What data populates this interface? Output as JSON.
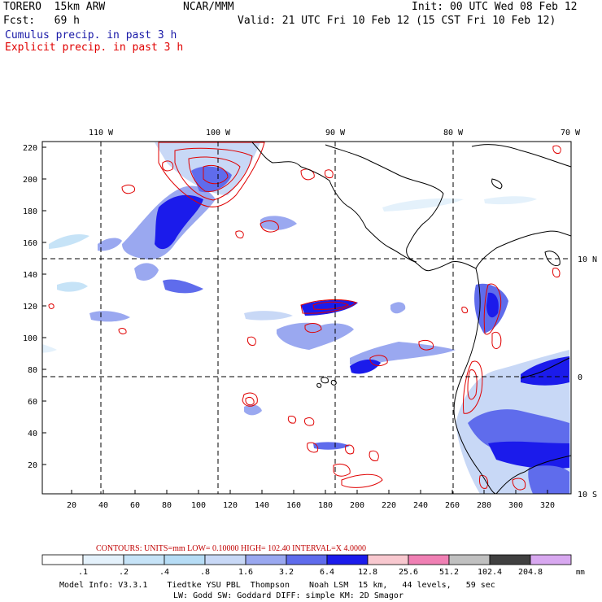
{
  "header": {
    "model": "TORERO  15km ARW",
    "org": "NCAR/MMM",
    "init": "Init: 00 UTC Wed 08 Feb 12",
    "fcst": "Fcst:   69 h",
    "valid": "Valid: 21 UTC Fri 10 Feb 12 (15 CST Fri 10 Feb 12)",
    "legend_cumulus": "Cumulus precip. in past 3 h",
    "legend_explicit": "Explicit precip. in past 3 h",
    "legend_cumulus_color": "#1a1aa8",
    "legend_explicit_color": "#e00000"
  },
  "map": {
    "top_lon_labels": [
      "110 W",
      "100 W",
      "90 W",
      "80 W",
      "70 W"
    ],
    "right_lat_labels": [
      "10 N",
      "0",
      "10 S"
    ],
    "y_ticks": [
      "220",
      "200",
      "180",
      "160",
      "140",
      "120",
      "100",
      "80",
      "60",
      "40",
      "20"
    ],
    "x_ticks": [
      "20",
      "40",
      "60",
      "80",
      "100",
      "120",
      "140",
      "160",
      "180",
      "200",
      "220",
      "240",
      "260",
      "280",
      "300",
      "320"
    ]
  },
  "contour_info": {
    "label": "CONTOURS:  UNITS=mm  LOW= 0.10000      HIGH=  102.40      INTERVAL=X  4.0000",
    "color": "#c00000"
  },
  "colorbar": {
    "labels": [
      ".1",
      ".2",
      ".4",
      ".8",
      "1.6",
      "3.2",
      "6.4",
      "12.8",
      "25.6",
      "51.2",
      "102.4",
      "204.8"
    ],
    "colors": [
      "#ffffff",
      "#e4f1fb",
      "#c6e3f7",
      "#b6dcf5",
      "#c8d8f6",
      "#9aa8f0",
      "#5f6cec",
      "#1b1beb",
      "#f8c8cf",
      "#f080b4",
      "#c0c0c0",
      "#404040",
      "#d8a8f0"
    ],
    "unit": "mm"
  },
  "footer": {
    "line1": "Model Info: V3.3.1    Tiedtke YSU PBL  Thompson    Noah LSM  15 km,   44 levels,   59 sec",
    "line2": "LW: Godd SW: Goddard DIFF: simple KM: 2D Smagor"
  }
}
